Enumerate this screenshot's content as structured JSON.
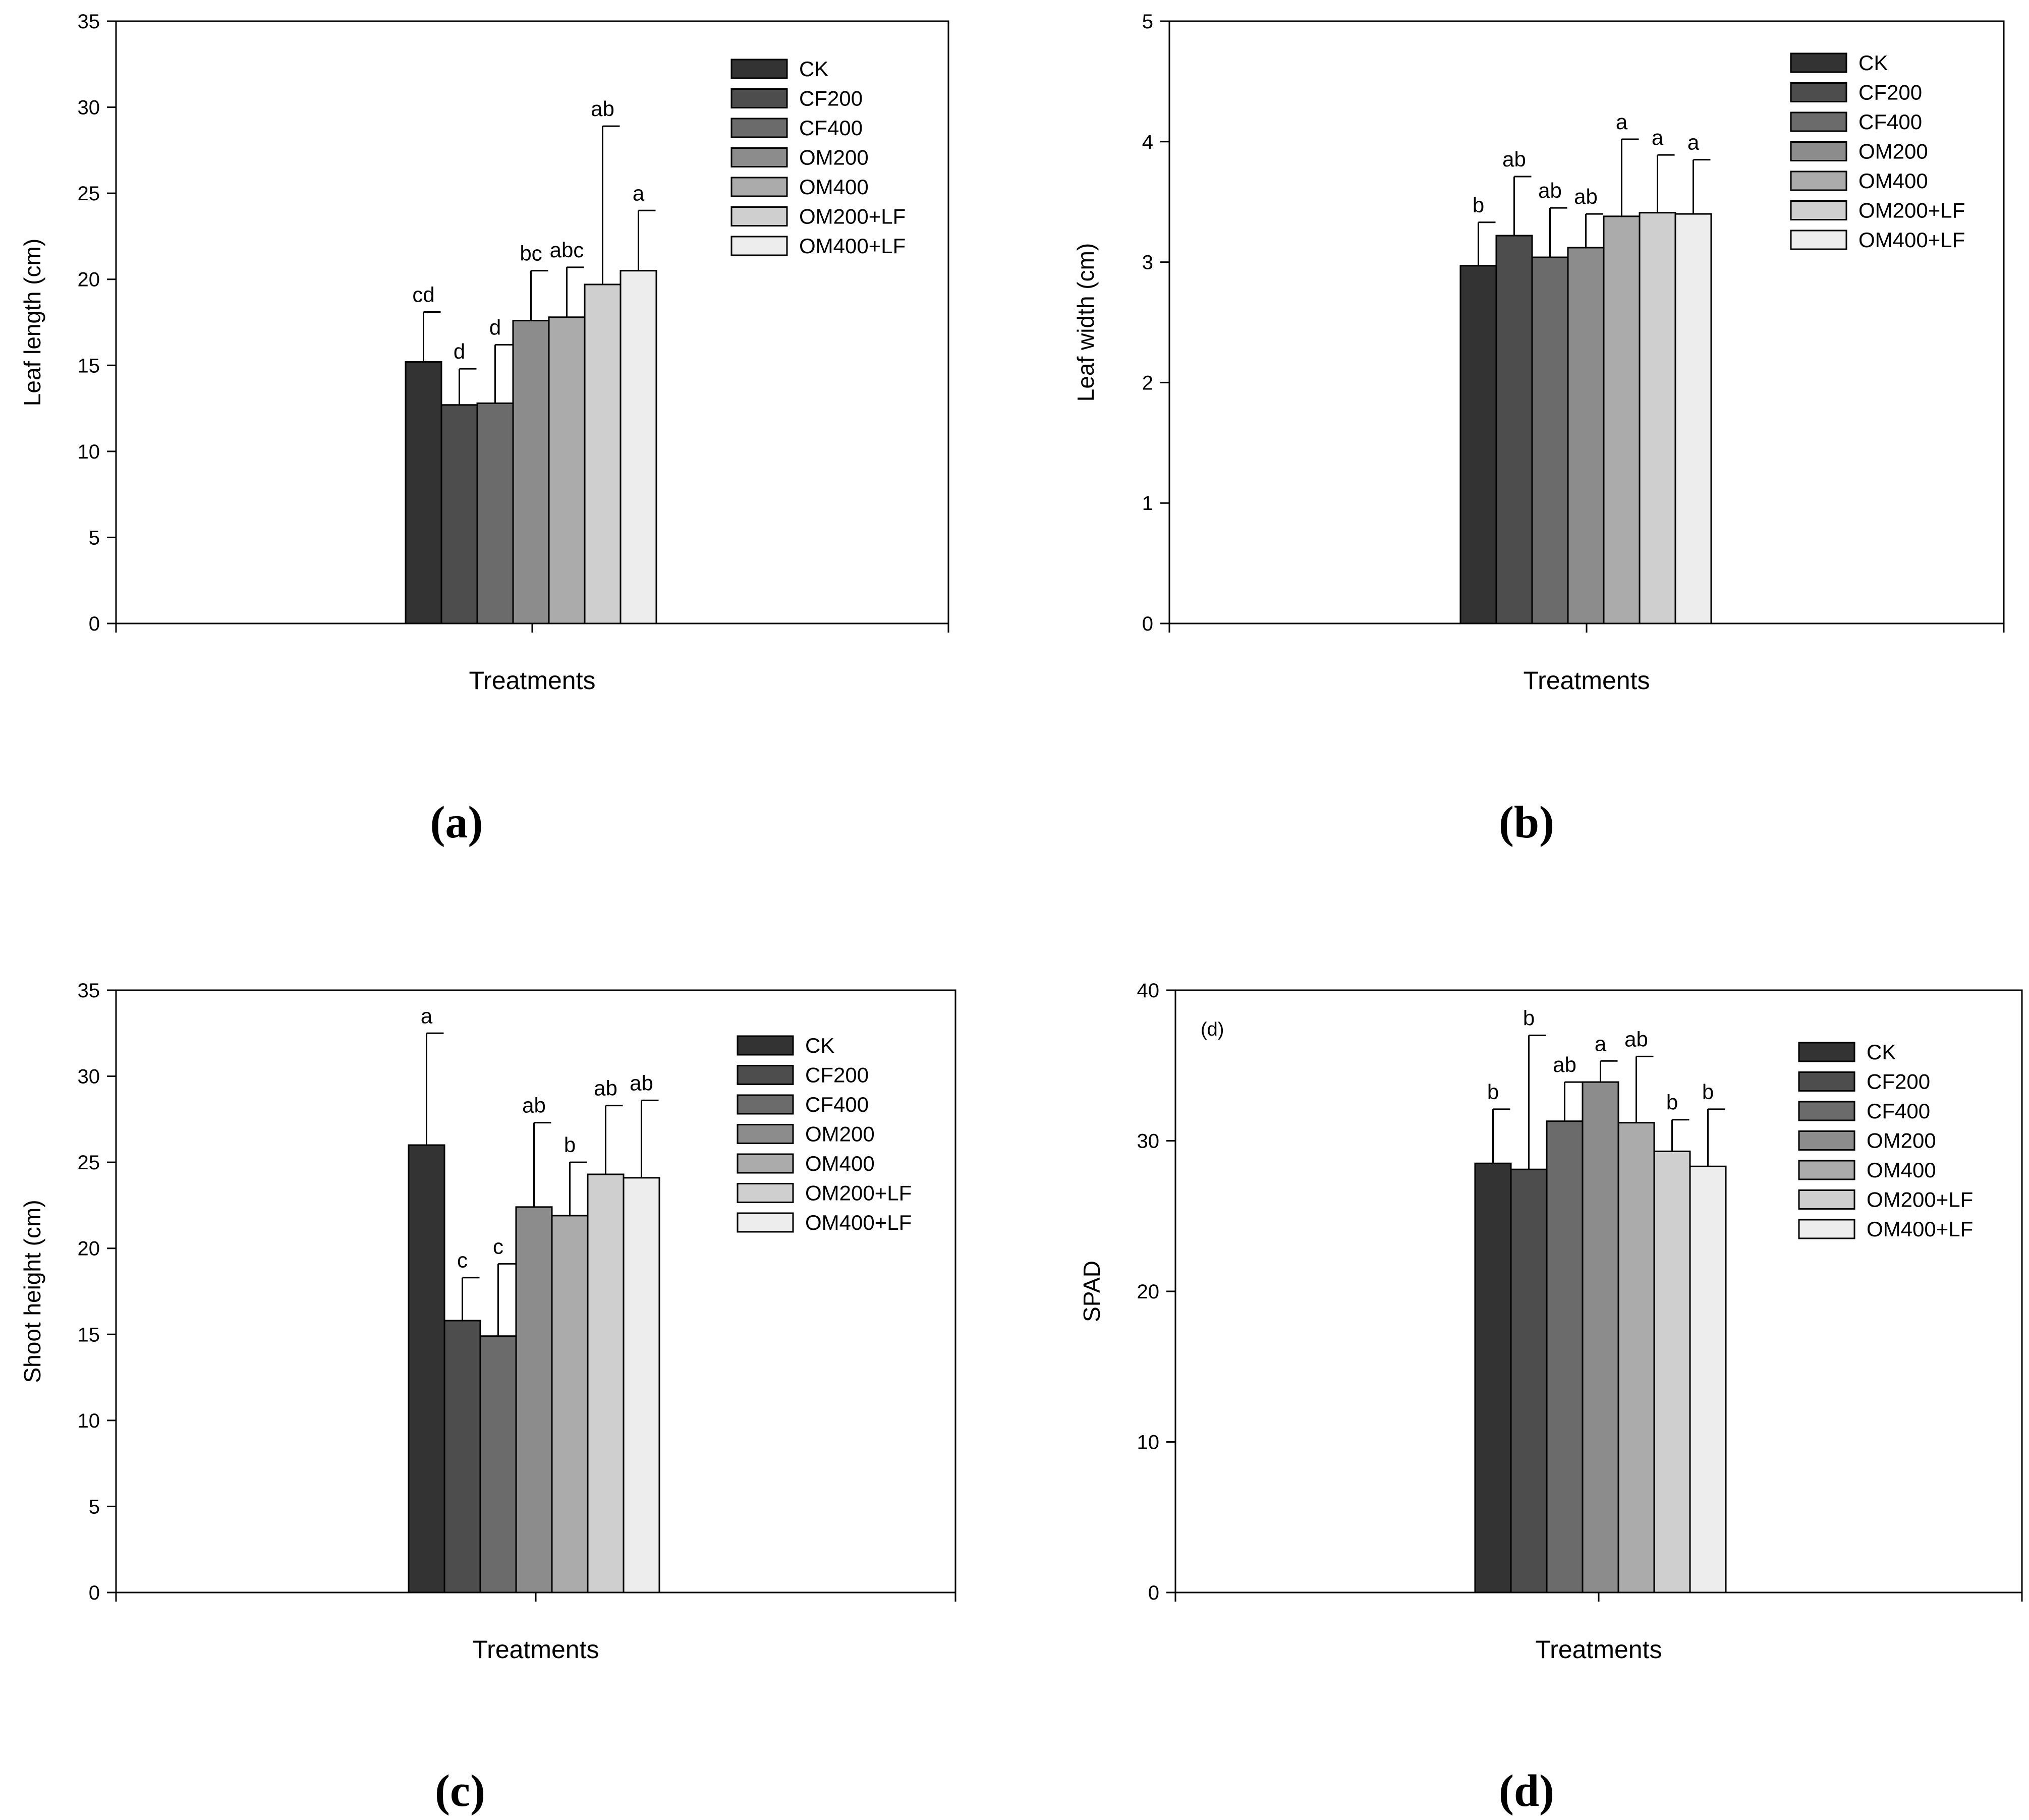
{
  "legend_colors": [
    "#333333",
    "#4d4d4d",
    "#6b6b6b",
    "#8c8c8c",
    "#ababab",
    "#cfcfcf",
    "#ededed"
  ],
  "chart_data": [
    {
      "type": "bar",
      "panel": "(a)",
      "inner_label": "",
      "title": "",
      "xlabel": "Treatments",
      "ylabel": "Leaf length (cm)",
      "ylim": [
        0,
        35
      ],
      "yticks": [
        0,
        5,
        10,
        15,
        20,
        25,
        30,
        35
      ],
      "legend_position": "top-right",
      "series": [
        {
          "name": "CK",
          "value": 15.2,
          "error": 2.9,
          "letter": "cd"
        },
        {
          "name": "CF200",
          "value": 12.7,
          "error": 2.1,
          "letter": "d"
        },
        {
          "name": "CF400",
          "value": 12.8,
          "error": 3.4,
          "letter": "d"
        },
        {
          "name": "OM200",
          "value": 17.6,
          "error": 2.9,
          "letter": "bc"
        },
        {
          "name": "OM400",
          "value": 17.8,
          "error": 2.9,
          "letter": "abc"
        },
        {
          "name": "OM200+LF",
          "value": 19.7,
          "error": 9.2,
          "letter": "ab"
        },
        {
          "name": "OM400+LF",
          "value": 20.5,
          "error": 3.5,
          "letter": "a"
        }
      ]
    },
    {
      "type": "bar",
      "panel": "(b)",
      "inner_label": "",
      "title": "",
      "xlabel": "Treatments",
      "ylabel": "Leaf width (cm)",
      "ylim": [
        0,
        5
      ],
      "yticks": [
        0,
        1,
        2,
        3,
        4,
        5
      ],
      "legend_position": "top-right",
      "series": [
        {
          "name": "CK",
          "value": 2.97,
          "error": 0.36,
          "letter": "b"
        },
        {
          "name": "CF200",
          "value": 3.22,
          "error": 0.49,
          "letter": "ab"
        },
        {
          "name": "CF400",
          "value": 3.04,
          "error": 0.41,
          "letter": "ab"
        },
        {
          "name": "OM200",
          "value": 3.12,
          "error": 0.28,
          "letter": "ab"
        },
        {
          "name": "OM400",
          "value": 3.38,
          "error": 0.64,
          "letter": "a"
        },
        {
          "name": "OM200+LF",
          "value": 3.41,
          "error": 0.48,
          "letter": "a"
        },
        {
          "name": "OM400+LF",
          "value": 3.4,
          "error": 0.45,
          "letter": "a"
        }
      ]
    },
    {
      "type": "bar",
      "panel": "(c)",
      "inner_label": "",
      "title": "",
      "xlabel": "Treatments",
      "ylabel": "Shoot height (cm)",
      "ylim": [
        0,
        35
      ],
      "yticks": [
        0,
        5,
        10,
        15,
        20,
        25,
        30,
        35
      ],
      "legend_position": "top-right",
      "series": [
        {
          "name": "CK",
          "value": 26.0,
          "error": 6.5,
          "letter": "a"
        },
        {
          "name": "CF200",
          "value": 15.8,
          "error": 2.5,
          "letter": "c"
        },
        {
          "name": "CF400",
          "value": 14.9,
          "error": 4.2,
          "letter": "c"
        },
        {
          "name": "OM200",
          "value": 22.4,
          "error": 4.9,
          "letter": "ab"
        },
        {
          "name": "OM400",
          "value": 21.9,
          "error": 3.1,
          "letter": "b"
        },
        {
          "name": "OM200+LF",
          "value": 24.3,
          "error": 4.0,
          "letter": "ab"
        },
        {
          "name": "OM400+LF",
          "value": 24.1,
          "error": 4.5,
          "letter": "ab"
        }
      ]
    },
    {
      "type": "bar",
      "panel": "(d)",
      "inner_label": "(d)",
      "title": "",
      "xlabel": "Treatments",
      "ylabel": "SPAD",
      "ylim": [
        0,
        40
      ],
      "yticks": [
        0,
        10,
        20,
        30,
        40
      ],
      "legend_position": "top-right",
      "series": [
        {
          "name": "CK",
          "value": 28.5,
          "error": 3.6,
          "letter": "b"
        },
        {
          "name": "CF200",
          "value": 28.1,
          "error": 8.9,
          "letter": "b"
        },
        {
          "name": "CF400",
          "value": 31.3,
          "error": 2.6,
          "letter": "ab"
        },
        {
          "name": "OM200",
          "value": 33.9,
          "error": 1.4,
          "letter": "a"
        },
        {
          "name": "OM400",
          "value": 31.2,
          "error": 4.4,
          "letter": "ab"
        },
        {
          "name": "OM200+LF",
          "value": 29.3,
          "error": 2.1,
          "letter": "b"
        },
        {
          "name": "OM400+LF",
          "value": 28.3,
          "error": 3.8,
          "letter": "b"
        }
      ]
    }
  ]
}
